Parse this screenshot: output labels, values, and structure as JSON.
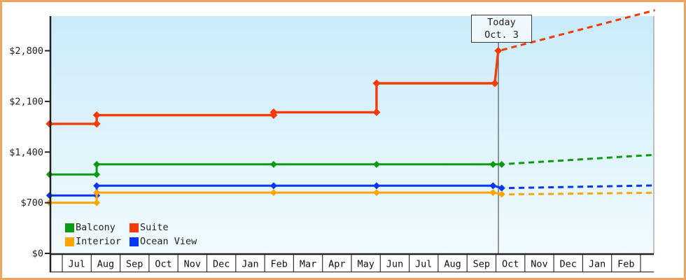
{
  "frame": {
    "border_color": "#efa45b",
    "background": "#ffffff"
  },
  "today": {
    "line1": "Today",
    "line2": "Oct. 3"
  },
  "chart_data": {
    "type": "line",
    "style": "stepped-price-history-with-dashed-forecast",
    "title": "",
    "xlabel": "",
    "ylabel": "",
    "months": [
      "Jul",
      "Aug",
      "Sep",
      "Oct",
      "Nov",
      "Dec",
      "Jan",
      "Feb",
      "Mar",
      "Apr",
      "May",
      "Jun",
      "Jul",
      "Aug",
      "Sep",
      "Oct",
      "Nov",
      "Dec",
      "Jan",
      "Feb"
    ],
    "yticks": [
      {
        "label": "$0",
        "value": 0
      },
      {
        "label": "$700",
        "value": 700
      },
      {
        "label": "$1,400",
        "value": 1400
      },
      {
        "label": "$2,100",
        "value": 2100
      },
      {
        "label": "$2,800",
        "value": 2800
      }
    ],
    "ylim": [
      0,
      2800
    ],
    "grid": false,
    "legend_position": "bottom-left",
    "axis_color": "#222222",
    "today_line_color": "#555555",
    "plot_bg_gradient": [
      "#cbebfa",
      "#f1fbfe"
    ],
    "today_marker": {
      "label": "Today Oct. 3",
      "x_month_index": 15.08
    },
    "series": [
      {
        "name": "Balcony",
        "color": "#0c9b10",
        "points": [
          [
            -0.44,
            1090
          ],
          [
            1.19,
            1090
          ],
          [
            1.19,
            1230
          ],
          [
            7.31,
            1230
          ],
          [
            10.87,
            1230
          ],
          [
            14.9,
            1230
          ],
          [
            15.2,
            1230
          ]
        ],
        "projection": [
          [
            15.45,
            1238
          ],
          [
            20.4,
            1360
          ]
        ]
      },
      {
        "name": "Suite",
        "color": "#f53b08",
        "points": [
          [
            -0.44,
            1790
          ],
          [
            1.19,
            1790
          ],
          [
            1.19,
            1910
          ],
          [
            7.31,
            1910
          ],
          [
            7.31,
            1950
          ],
          [
            10.87,
            1950
          ],
          [
            10.87,
            2350
          ],
          [
            14.96,
            2350
          ],
          [
            15.08,
            2800
          ]
        ],
        "projection": [
          [
            15.2,
            2810
          ],
          [
            20.5,
            3360
          ]
        ]
      },
      {
        "name": "Interior",
        "color": "#ffa505",
        "points": [
          [
            -0.44,
            700
          ],
          [
            1.19,
            700
          ],
          [
            1.19,
            840
          ],
          [
            7.31,
            840
          ],
          [
            10.87,
            840
          ],
          [
            14.9,
            840
          ],
          [
            15.2,
            818
          ]
        ],
        "projection": [
          [
            15.45,
            815
          ],
          [
            20.4,
            838
          ]
        ]
      },
      {
        "name": "Ocean View",
        "color": "#0936f5",
        "points": [
          [
            -0.44,
            800
          ],
          [
            1.19,
            800
          ],
          [
            1.19,
            935
          ],
          [
            7.31,
            935
          ],
          [
            10.87,
            935
          ],
          [
            14.9,
            935
          ],
          [
            15.2,
            903
          ]
        ],
        "projection": [
          [
            15.45,
            903
          ],
          [
            20.4,
            938
          ]
        ]
      }
    ]
  }
}
